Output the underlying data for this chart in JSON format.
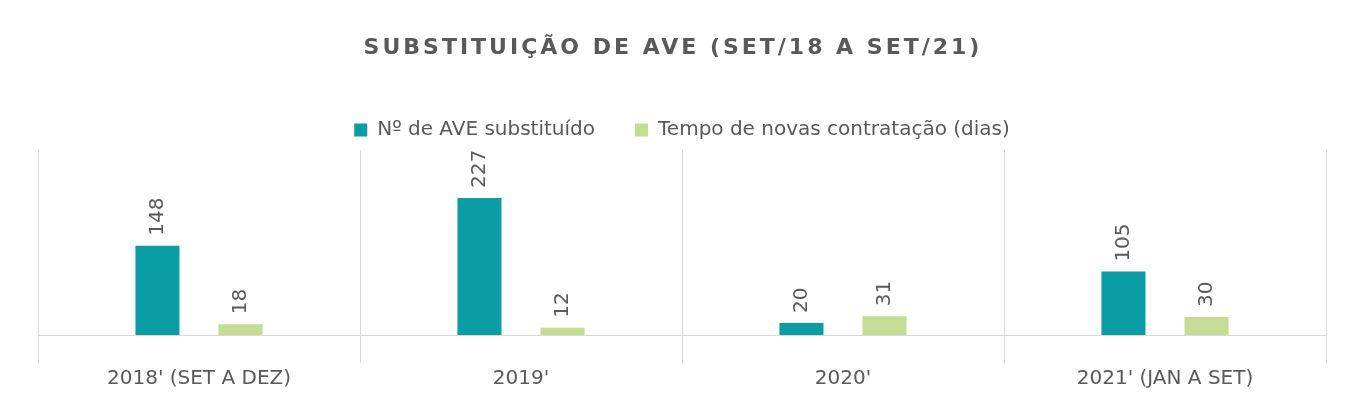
{
  "chart_data": {
    "type": "bar",
    "title": "SUBSTITUIÇÃO DE AVE (SET/18 A SET/21)",
    "categories": [
      "2018' (SET A DEZ)",
      "2019'",
      "2020'",
      "2021' (JAN A SET)"
    ],
    "series": [
      {
        "name": "Nº de AVE substituído",
        "color": "#0a9da6",
        "values": [
          148,
          227,
          20,
          105
        ]
      },
      {
        "name": "Tempo de novas contratação (dias)",
        "color": "#c6db93",
        "values": [
          18,
          12,
          31,
          30
        ]
      }
    ],
    "data_labels": true,
    "legend": "top",
    "grid": "x"
  }
}
